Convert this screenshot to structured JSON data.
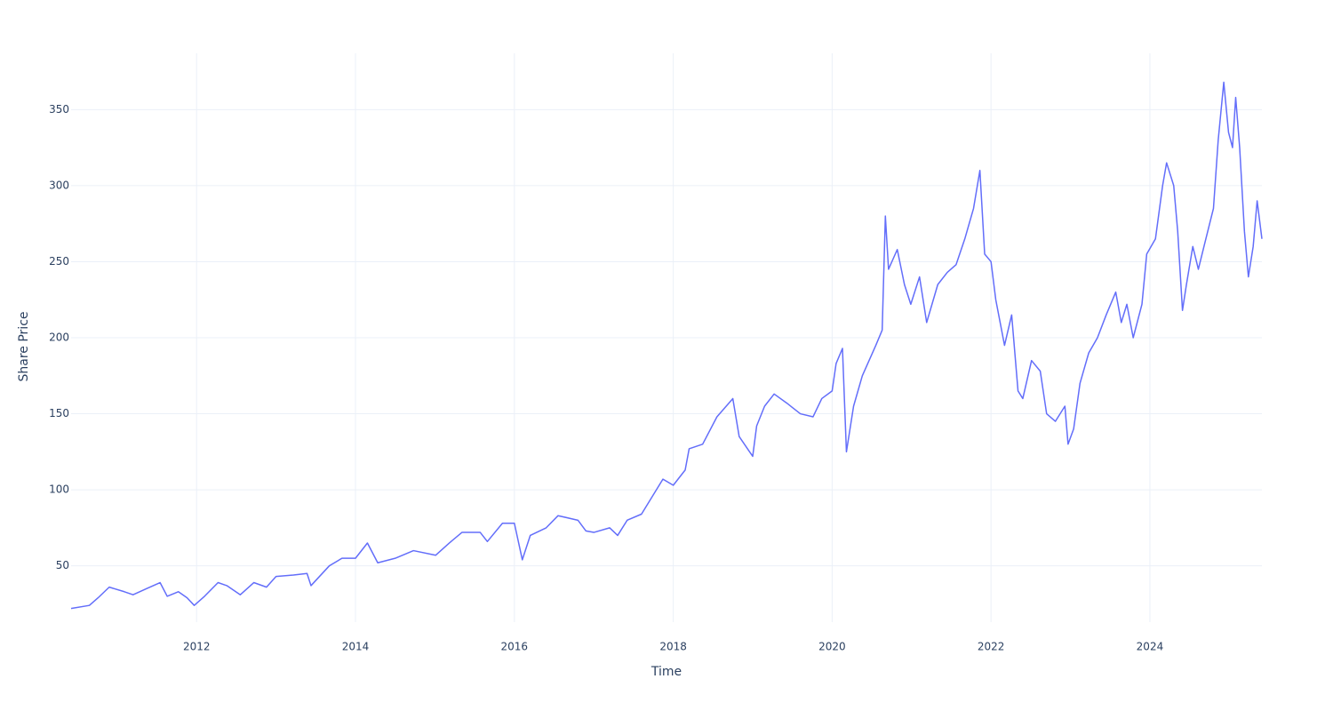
{
  "chart_data": {
    "type": "line",
    "xlabel": "Time",
    "ylabel": "Share Price",
    "color": "#636efa",
    "grid": true,
    "xlim": [
      2010.42,
      2025.41
    ],
    "ylim": [
      13,
      387
    ],
    "xticks": [
      2012,
      2014,
      2016,
      2018,
      2020,
      2022,
      2024
    ],
    "yticks": [
      50,
      100,
      150,
      200,
      250,
      300,
      350
    ],
    "x": [
      2010.42,
      2010.65,
      2010.76,
      2010.9,
      2011.09,
      2011.2,
      2011.37,
      2011.54,
      2011.63,
      2011.77,
      2011.88,
      2011.97,
      2012.1,
      2012.27,
      2012.38,
      2012.55,
      2012.72,
      2012.88,
      2013.0,
      2013.22,
      2013.39,
      2013.44,
      2013.67,
      2013.83,
      2014.0,
      2014.15,
      2014.28,
      2014.5,
      2014.73,
      2015.01,
      2015.18,
      2015.34,
      2015.57,
      2015.66,
      2015.85,
      2016.0,
      2016.1,
      2016.2,
      2016.4,
      2016.55,
      2016.8,
      2016.9,
      2017.0,
      2017.2,
      2017.3,
      2017.42,
      2017.6,
      2017.87,
      2018.0,
      2018.15,
      2018.2,
      2018.37,
      2018.55,
      2018.75,
      2018.83,
      2019.0,
      2019.05,
      2019.15,
      2019.27,
      2019.43,
      2019.6,
      2019.76,
      2019.87,
      2020.0,
      2020.05,
      2020.13,
      2020.18,
      2020.27,
      2020.38,
      2020.55,
      2020.63,
      2020.67,
      2020.71,
      2020.82,
      2020.91,
      2020.99,
      2021.1,
      2021.19,
      2021.33,
      2021.45,
      2021.56,
      2021.67,
      2021.78,
      2021.86,
      2021.92,
      2022.0,
      2022.06,
      2022.17,
      2022.26,
      2022.34,
      2022.4,
      2022.51,
      2022.62,
      2022.7,
      2022.81,
      2022.93,
      2022.97,
      2023.04,
      2023.12,
      2023.23,
      2023.34,
      2023.45,
      2023.57,
      2023.64,
      2023.71,
      2023.79,
      2023.9,
      2023.96,
      2024.07,
      2024.16,
      2024.21,
      2024.3,
      2024.35,
      2024.41,
      2024.46,
      2024.54,
      2024.61,
      2024.69,
      2024.8,
      2024.86,
      2024.93,
      2024.99,
      2025.04,
      2025.08,
      2025.13,
      2025.19,
      2025.24,
      2025.3,
      2025.35,
      2025.41
    ],
    "values": [
      22,
      24,
      29,
      36,
      33,
      31,
      35,
      39,
      30,
      33,
      29,
      24,
      30,
      39,
      37,
      31,
      39,
      36,
      43,
      44,
      45,
      37,
      50,
      55,
      55,
      65,
      52,
      55,
      60,
      57,
      65,
      72,
      72,
      66,
      78,
      78,
      54,
      70,
      75,
      83,
      80,
      73,
      72,
      75,
      70,
      80,
      84,
      107,
      103,
      113,
      127,
      130,
      148,
      160,
      135,
      122,
      142,
      155,
      163,
      157,
      150,
      148,
      160,
      165,
      183,
      193,
      125,
      155,
      175,
      195,
      205,
      280,
      245,
      258,
      235,
      222,
      240,
      210,
      235,
      243,
      248,
      265,
      285,
      310,
      255,
      250,
      225,
      195,
      215,
      165,
      160,
      185,
      178,
      150,
      145,
      155,
      130,
      140,
      170,
      190,
      200,
      215,
      230,
      210,
      222,
      200,
      222,
      255,
      265,
      300,
      315,
      300,
      270,
      218,
      235,
      260,
      245,
      262,
      285,
      330,
      368,
      335,
      325,
      358,
      325,
      270,
      240,
      260,
      290,
      265
    ]
  }
}
